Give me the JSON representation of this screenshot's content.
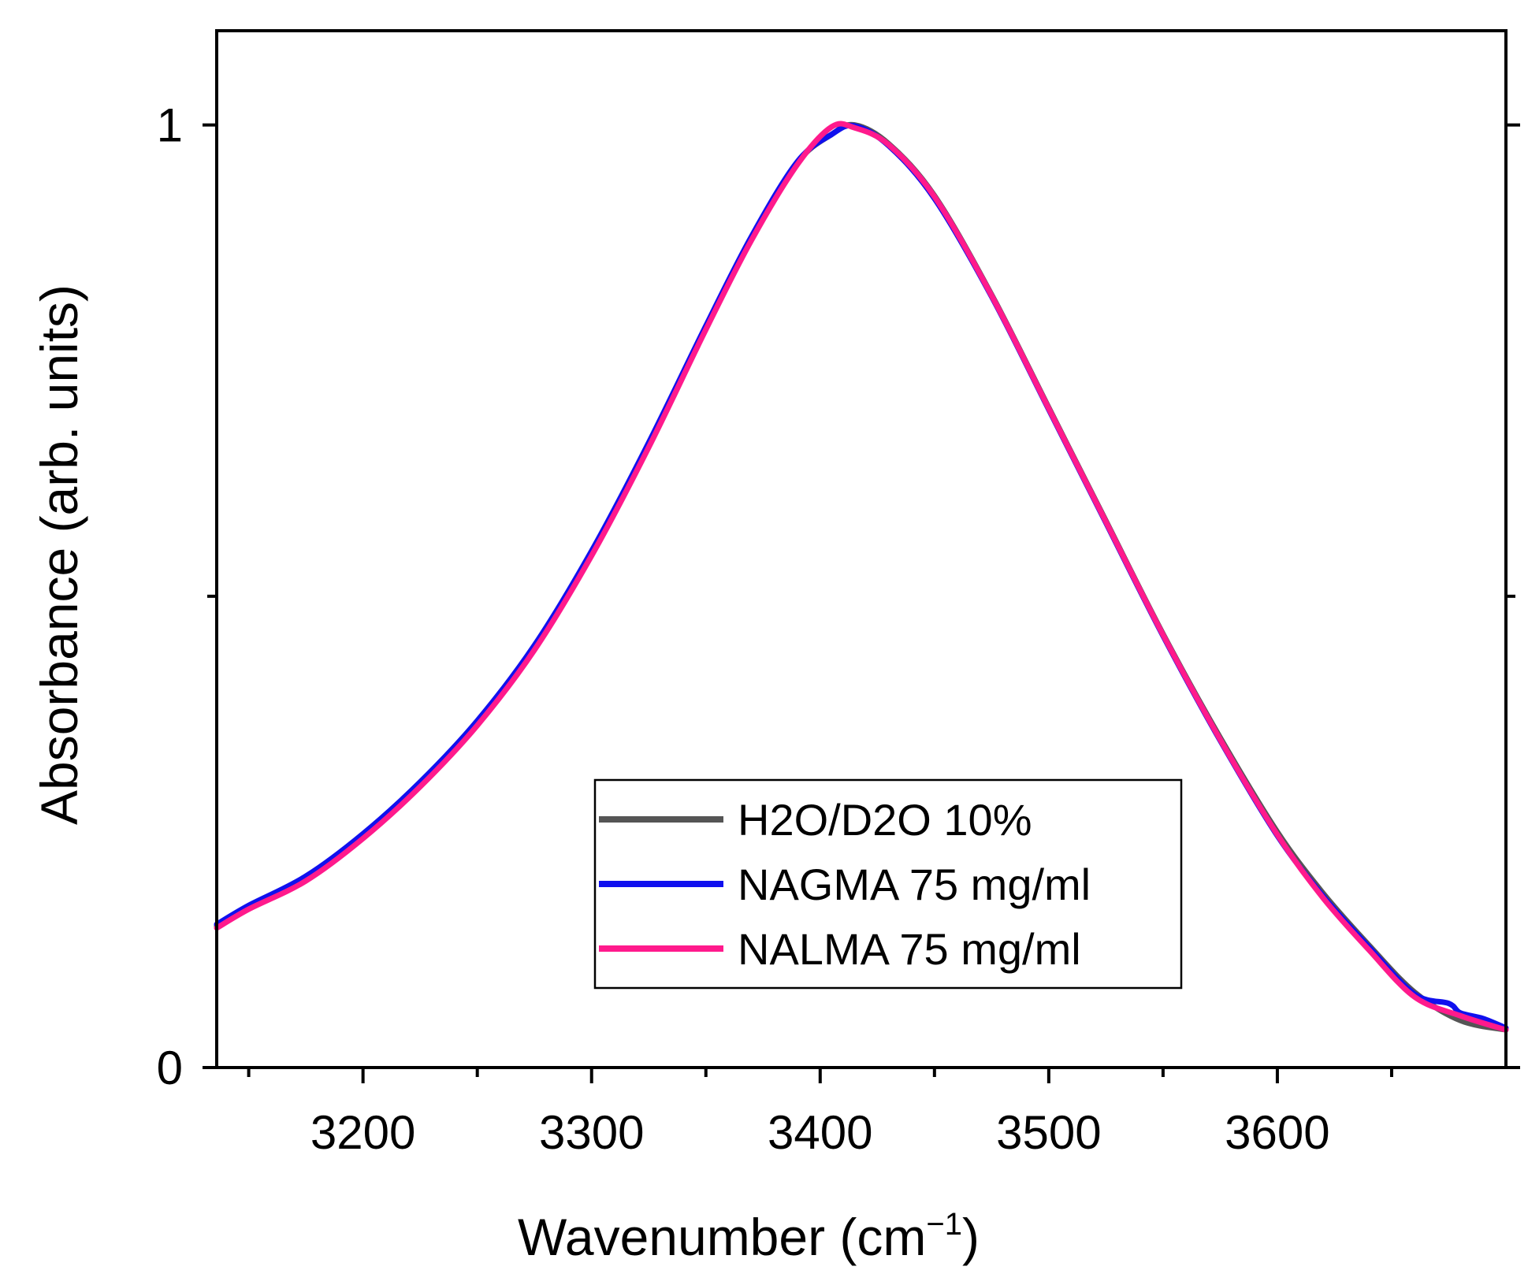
{
  "chart_data": {
    "type": "line",
    "title": "",
    "xlabel": "Wavenumber (cm",
    "xlabel_sup": "−1",
    "xlabel_close": ")",
    "ylabel": "Absorbance (arb. units)",
    "xlim": [
      3136,
      3700
    ],
    "ylim": [
      0,
      1.1
    ],
    "xticks": [
      3200,
      3300,
      3400,
      3500,
      3600
    ],
    "xtick_labels": [
      "3200",
      "3300",
      "3400",
      "3500",
      "3600"
    ],
    "xminor": [
      3150,
      3250,
      3350,
      3450,
      3550,
      3650
    ],
    "yticks": [
      0,
      1
    ],
    "ytick_labels": [
      "0",
      "1"
    ],
    "yminor": [
      0.5
    ],
    "grid": false,
    "legend_position": "lower-right",
    "series": [
      {
        "name": "H2O/D2O 10%",
        "color": "#555555",
        "x": [
          3136,
          3150,
          3175,
          3200,
          3225,
          3250,
          3275,
          3300,
          3325,
          3350,
          3370,
          3390,
          3405,
          3415,
          3430,
          3450,
          3475,
          3500,
          3525,
          3550,
          3575,
          3600,
          3620,
          3640,
          3660,
          3680,
          3700
        ],
        "values": [
          0.15,
          0.17,
          0.2,
          0.245,
          0.3,
          0.365,
          0.445,
          0.545,
          0.66,
          0.785,
          0.88,
          0.96,
          0.99,
          1.0,
          0.98,
          0.925,
          0.82,
          0.7,
          0.58,
          0.46,
          0.35,
          0.25,
          0.185,
          0.13,
          0.08,
          0.05,
          0.04
        ]
      },
      {
        "name": "NAGMA 75 mg/ml",
        "color": "#1010ee",
        "x": [
          3136,
          3150,
          3175,
          3200,
          3225,
          3250,
          3275,
          3300,
          3325,
          3350,
          3370,
          3390,
          3405,
          3415,
          3430,
          3450,
          3475,
          3500,
          3525,
          3550,
          3575,
          3600,
          3620,
          3640,
          3660,
          3675,
          3680,
          3690,
          3700
        ],
        "values": [
          0.152,
          0.172,
          0.203,
          0.248,
          0.303,
          0.368,
          0.448,
          0.548,
          0.663,
          0.787,
          0.882,
          0.961,
          0.99,
          0.999,
          0.978,
          0.922,
          0.818,
          0.698,
          0.578,
          0.458,
          0.347,
          0.246,
          0.182,
          0.128,
          0.078,
          0.068,
          0.058,
          0.052,
          0.042
        ]
      },
      {
        "name": "NALMA 75 mg/ml",
        "color": "#ff1a8c",
        "x": [
          3136,
          3150,
          3175,
          3200,
          3225,
          3250,
          3275,
          3300,
          3325,
          3350,
          3370,
          3390,
          3405,
          3415,
          3430,
          3450,
          3475,
          3500,
          3525,
          3550,
          3575,
          3600,
          3620,
          3640,
          3660,
          3680,
          3700
        ],
        "values": [
          0.148,
          0.168,
          0.198,
          0.243,
          0.298,
          0.363,
          0.443,
          0.543,
          0.658,
          0.783,
          0.878,
          0.958,
          0.998,
          0.997,
          0.979,
          0.924,
          0.819,
          0.699,
          0.579,
          0.459,
          0.348,
          0.247,
          0.18,
          0.125,
          0.075,
          0.055,
          0.04
        ]
      }
    ]
  }
}
